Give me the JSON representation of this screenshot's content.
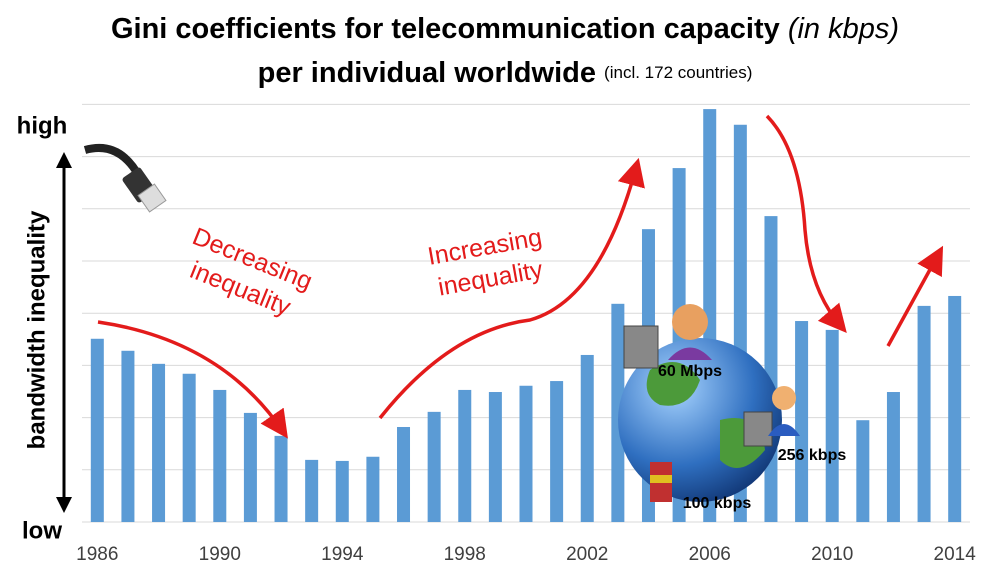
{
  "chart_data": {
    "type": "bar",
    "title": {
      "main": "Gini coefficients for telecommunication capacity",
      "italic": "(in kbps)"
    },
    "subtitle": {
      "main": "per individual worldwide",
      "small": "(incl. 172 countries)"
    },
    "y_label": "bandwidth inequality",
    "y_high": "high",
    "y_low": "low",
    "categories": [
      "1986",
      null,
      null,
      null,
      "1990",
      null,
      null,
      null,
      "1994",
      null,
      null,
      null,
      "1998",
      null,
      null,
      null,
      "2002",
      null,
      null,
      null,
      "2006",
      null,
      null,
      null,
      "2010",
      null,
      null,
      null,
      "2014"
    ],
    "values": [
      3.51,
      3.28,
      3.03,
      2.84,
      2.53,
      2.09,
      1.65,
      1.19,
      1.17,
      1.25,
      1.82,
      2.11,
      2.53,
      2.49,
      2.61,
      2.7,
      3.2,
      4.18,
      5.61,
      6.78,
      7.91,
      7.61,
      5.86,
      3.85,
      3.68,
      1.95,
      2.49,
      4.14,
      4.33
    ],
    "color": "#5b9bd5",
    "ylim": [
      0,
      8
    ],
    "yticks": [
      0,
      1,
      2,
      3,
      4,
      5,
      6,
      7,
      8
    ],
    "grid": true,
    "annotations": {
      "decreasing": [
        "Decreasing",
        "inequality"
      ],
      "increasing": [
        "Increasing",
        "inequality"
      ],
      "speed_high": "60 Mbps",
      "speed_mid": "256 kbps",
      "speed_low": "100 kbps"
    }
  }
}
